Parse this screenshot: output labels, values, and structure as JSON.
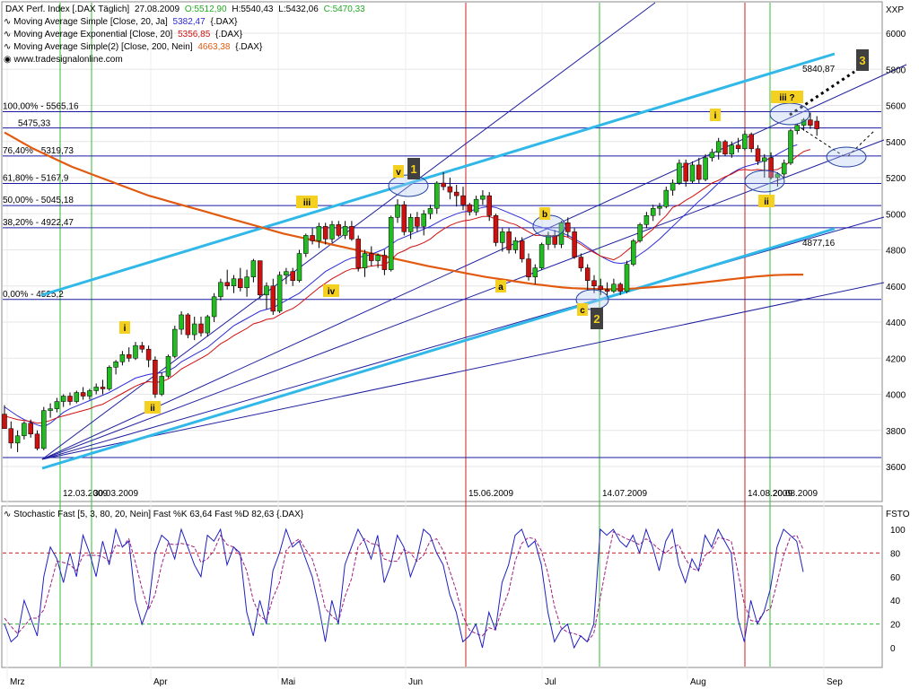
{
  "header": {
    "line1": {
      "name": "DAX Perf. Index [.DAX  Täglich]",
      "date": "27.08.2009",
      "o": "O:5512,90",
      "h": "H:5540,43",
      "l": "L:5432,06",
      "c": "C:5470,33"
    },
    "line2": {
      "name": "Moving Average Simple [Close, 20, Ja]",
      "value": "5382,47",
      "suffix": "{.DAX}",
      "color": "#2b2bd6"
    },
    "line3": {
      "name": "Moving Average Exponential [Close, 20]",
      "value": "5356,85",
      "suffix": "{.DAX}",
      "color": "#d01010"
    },
    "line4": {
      "name": "Moving Average Simple(2) [Close, 200, Nein]",
      "value": "4663,38",
      "suffix": "{.DAX}",
      "color": "#e25a10"
    },
    "source": "www.tradesignalonline.com"
  },
  "colors": {
    "up": "#22bb22",
    "down": "#cc1111",
    "sma20": "#2b2bd6",
    "ema20": "#d01010",
    "sma200": "#e25a10",
    "channel": "#30b8e8",
    "fib": "#1a1aa0",
    "vgreen": "#33bb33",
    "vred": "#cc2222",
    "label_bg": "#f4d020",
    "wave_bg": "#404040"
  },
  "price_axis": {
    "unit": "XXP",
    "ticks": [
      "6000",
      "5800",
      "5600",
      "5400",
      "5200",
      "5000",
      "4800",
      "4600",
      "4400",
      "4200",
      "4000",
      "3800",
      "3600"
    ]
  },
  "stoch_axis": {
    "unit": "FSTO",
    "ticks": [
      "100",
      "80",
      "60",
      "40",
      "20",
      "0"
    ]
  },
  "stoch_title": "Stochastic Fast [5, 3, 80, 20, Nein]  Fast %K 63,64  Fast %D 82,63 {.DAX}",
  "months": [
    "Mrz",
    "Apr",
    "Mai",
    "Jun",
    "Jul",
    "Aug",
    "Sep"
  ],
  "fib_levels": [
    {
      "label": "100,00% - 5565,16",
      "value": 5565.16
    },
    {
      "label": "76,40% - 5319,73",
      "value": 5319.73
    },
    {
      "label": "61,80% - 5167,9",
      "value": 5167.9
    },
    {
      "label": "50,00% - 5045,18",
      "value": 5045.18
    },
    {
      "label": "38,20% - 4922,47",
      "value": 4922.47
    },
    {
      "label": "0,00% - 4525,2",
      "value": 4525.2
    }
  ],
  "overlap_label": "5475,33",
  "channel_labels": {
    "upper": "5840,87",
    "lower": "4877,16"
  },
  "vertical_lines": [
    {
      "label": "12.03.2009",
      "color": "green"
    },
    {
      "label": "30.03.2009",
      "color": "green"
    },
    {
      "label": "15.06.2009",
      "color": "red"
    },
    {
      "label": "14.07.2009",
      "color": "green"
    },
    {
      "label": "14.08.2009",
      "color": "red"
    },
    {
      "label": "20.08.2009",
      "color": "green"
    }
  ],
  "wave_labels": {
    "i1": "i",
    "ii1": "ii",
    "iii1": "iii",
    "iv1": "iv",
    "v1": "v",
    "w1": "1",
    "a": "a",
    "b": "b",
    "c": "c",
    "w2": "2",
    "i2": "i",
    "ii2": "ii",
    "iii2": "iii ?",
    "w3": "3"
  },
  "chart_data": {
    "type": "candlestick",
    "title": "DAX Perf. Index [.DAX  Täglich]",
    "ylim": [
      3450,
      6100
    ],
    "stoch_ylim": [
      -15,
      110
    ],
    "candles": [
      [
        3890,
        3940,
        3810,
        3810
      ],
      [
        3810,
        3850,
        3700,
        3730
      ],
      [
        3730,
        3800,
        3680,
        3770
      ],
      [
        3770,
        3850,
        3750,
        3840
      ],
      [
        3840,
        3860,
        3760,
        3780
      ],
      [
        3780,
        3800,
        3690,
        3700
      ],
      [
        3700,
        3930,
        3690,
        3910
      ],
      [
        3910,
        3950,
        3870,
        3920
      ],
      [
        3920,
        3980,
        3900,
        3960
      ],
      [
        3960,
        4000,
        3930,
        3990
      ],
      [
        3990,
        4010,
        3940,
        3960
      ],
      [
        3960,
        4020,
        3950,
        4010
      ],
      [
        4010,
        4040,
        3970,
        3990
      ],
      [
        3990,
        4030,
        3970,
        4020
      ],
      [
        4020,
        4060,
        4000,
        4040
      ],
      [
        4040,
        4080,
        4000,
        4030
      ],
      [
        4030,
        4160,
        4020,
        4150
      ],
      [
        4150,
        4190,
        4110,
        4180
      ],
      [
        4180,
        4240,
        4160,
        4220
      ],
      [
        4220,
        4260,
        4180,
        4200
      ],
      [
        4200,
        4290,
        4190,
        4270
      ],
      [
        4270,
        4290,
        4230,
        4250
      ],
      [
        4250,
        4270,
        4150,
        4190
      ],
      [
        4190,
        4210,
        3980,
        4000
      ],
      [
        4000,
        4120,
        3990,
        4100
      ],
      [
        4100,
        4220,
        4090,
        4210
      ],
      [
        4210,
        4380,
        4200,
        4360
      ],
      [
        4360,
        4460,
        4330,
        4440
      ],
      [
        4440,
        4450,
        4310,
        4330
      ],
      [
        4330,
        4430,
        4300,
        4390
      ],
      [
        4390,
        4430,
        4320,
        4340
      ],
      [
        4340,
        4440,
        4320,
        4430
      ],
      [
        4430,
        4560,
        4400,
        4540
      ],
      [
        4540,
        4640,
        4520,
        4620
      ],
      [
        4620,
        4690,
        4580,
        4600
      ],
      [
        4600,
        4660,
        4560,
        4640
      ],
      [
        4640,
        4700,
        4570,
        4590
      ],
      [
        4590,
        4690,
        4540,
        4650
      ],
      [
        4650,
        4750,
        4620,
        4740
      ],
      [
        4740,
        4740,
        4530,
        4550
      ],
      [
        4550,
        4620,
        4470,
        4600
      ],
      [
        4600,
        4640,
        4440,
        4460
      ],
      [
        4460,
        4680,
        4450,
        4660
      ],
      [
        4660,
        4700,
        4610,
        4680
      ],
      [
        4680,
        4700,
        4600,
        4630
      ],
      [
        4630,
        4800,
        4620,
        4780
      ],
      [
        4780,
        4890,
        4760,
        4880
      ],
      [
        4880,
        4920,
        4830,
        4850
      ],
      [
        4850,
        4950,
        4810,
        4930
      ],
      [
        4930,
        4950,
        4830,
        4860
      ],
      [
        4860,
        4960,
        4840,
        4940
      ],
      [
        4940,
        4960,
        4870,
        4880
      ],
      [
        4880,
        4960,
        4860,
        4930
      ],
      [
        4930,
        4960,
        4850,
        4860
      ],
      [
        4860,
        4880,
        4680,
        4700
      ],
      [
        4700,
        4800,
        4650,
        4780
      ],
      [
        4780,
        4820,
        4710,
        4740
      ],
      [
        4740,
        4780,
        4700,
        4770
      ],
      [
        4770,
        4800,
        4660,
        4690
      ],
      [
        4690,
        4990,
        4680,
        4980
      ],
      [
        4980,
        5080,
        4950,
        5050
      ],
      [
        5050,
        5070,
        4880,
        4900
      ],
      [
        4900,
        5000,
        4860,
        4980
      ],
      [
        4980,
        5010,
        4900,
        4930
      ],
      [
        4930,
        5020,
        4880,
        5000
      ],
      [
        5000,
        5050,
        4970,
        5030
      ],
      [
        5030,
        5180,
        5000,
        5170
      ],
      [
        5170,
        5230,
        5130,
        5150
      ],
      [
        5150,
        5200,
        5080,
        5120
      ],
      [
        5120,
        5160,
        5040,
        5100
      ],
      [
        5100,
        5150,
        5020,
        5050
      ],
      [
        5050,
        5060,
        4990,
        5010
      ],
      [
        5010,
        5100,
        4990,
        5080
      ],
      [
        5080,
        5130,
        5050,
        5100
      ],
      [
        5100,
        5120,
        4960,
        4990
      ],
      [
        4990,
        5000,
        4820,
        4840
      ],
      [
        4840,
        4920,
        4790,
        4900
      ],
      [
        4900,
        4920,
        4780,
        4800
      ],
      [
        4800,
        4870,
        4780,
        4850
      ],
      [
        4850,
        4870,
        4730,
        4750
      ],
      [
        4750,
        4780,
        4630,
        4650
      ],
      [
        4650,
        4720,
        4610,
        4700
      ],
      [
        4700,
        4840,
        4690,
        4830
      ],
      [
        4830,
        4900,
        4800,
        4880
      ],
      [
        4880,
        4910,
        4810,
        4830
      ],
      [
        4830,
        4960,
        4810,
        4950
      ],
      [
        4950,
        4980,
        4870,
        4900
      ],
      [
        4900,
        4920,
        4750,
        4760
      ],
      [
        4760,
        4780,
        4680,
        4700
      ],
      [
        4700,
        4720,
        4580,
        4630
      ],
      [
        4630,
        4660,
        4560,
        4600
      ],
      [
        4600,
        4640,
        4550,
        4580
      ],
      [
        4580,
        4620,
        4540,
        4570
      ],
      [
        4570,
        4640,
        4560,
        4610
      ],
      [
        4610,
        4620,
        4550,
        4570
      ],
      [
        4570,
        4740,
        4560,
        4720
      ],
      [
        4720,
        4860,
        4710,
        4850
      ],
      [
        4850,
        4950,
        4840,
        4940
      ],
      [
        4940,
        5010,
        4920,
        4990
      ],
      [
        4990,
        5050,
        4960,
        5030
      ],
      [
        5030,
        5060,
        4990,
        5040
      ],
      [
        5040,
        5150,
        5030,
        5130
      ],
      [
        5130,
        5190,
        5100,
        5170
      ],
      [
        5170,
        5300,
        5160,
        5280
      ],
      [
        5280,
        5300,
        5150,
        5180
      ],
      [
        5180,
        5290,
        5170,
        5270
      ],
      [
        5270,
        5310,
        5170,
        5190
      ],
      [
        5190,
        5330,
        5180,
        5310
      ],
      [
        5310,
        5360,
        5290,
        5340
      ],
      [
        5340,
        5420,
        5300,
        5400
      ],
      [
        5400,
        5410,
        5320,
        5330
      ],
      [
        5330,
        5400,
        5310,
        5380
      ],
      [
        5380,
        5420,
        5340,
        5360
      ],
      [
        5360,
        5460,
        5350,
        5440
      ],
      [
        5440,
        5450,
        5340,
        5360
      ],
      [
        5360,
        5380,
        5270,
        5290
      ],
      [
        5290,
        5330,
        5200,
        5310
      ],
      [
        5310,
        5340,
        5190,
        5200
      ],
      [
        5200,
        5230,
        5150,
        5220
      ],
      [
        5220,
        5300,
        5200,
        5280
      ],
      [
        5280,
        5470,
        5270,
        5460
      ],
      [
        5460,
        5500,
        5440,
        5490
      ],
      [
        5490,
        5530,
        5460,
        5520
      ],
      [
        5520,
        5560,
        5470,
        5490
      ],
      [
        5512.9,
        5540.43,
        5432.06,
        5470.33
      ]
    ],
    "sma20": [
      3930,
      3905,
      3880,
      3860,
      3845,
      3830,
      3820,
      3840,
      3870,
      3900,
      3920,
      3935,
      3950,
      3965,
      3980,
      3995,
      4010,
      4030,
      4050,
      4070,
      4090,
      4100,
      4110,
      4115,
      4120,
      4130,
      4150,
      4180,
      4200,
      4220,
      4240,
      4260,
      4290,
      4320,
      4350,
      4380,
      4400,
      4420,
      4440,
      4460,
      4470,
      4480,
      4500,
      4520,
      4540,
      4560,
      4590,
      4620,
      4650,
      4680,
      4700,
      4720,
      4740,
      4755,
      4760,
      4765,
      4775,
      4790,
      4805,
      4830,
      4855,
      4870,
      4885,
      4900,
      4915,
      4930,
      4950,
      4970,
      4985,
      5000,
      5010,
      5015,
      5025,
      5035,
      5040,
      5035,
      5020,
      5005,
      4990,
      4975,
      4955,
      4935,
      4925,
      4915,
      4905,
      4895,
      4880,
      4860,
      4840,
      4815,
      4790,
      4765,
      4745,
      4730,
      4725,
      4730,
      4750,
      4775,
      4800,
      4830,
      4860,
      4895,
      4930,
      4965,
      5000,
      5035,
      5070,
      5100,
      5135,
      5170,
      5200,
      5225,
      5245,
      5260,
      5270,
      5280,
      5295,
      5310,
      5330,
      5350,
      5370,
      5382
    ],
    "ema20": [
      3880,
      3870,
      3860,
      3855,
      3850,
      3840,
      3845,
      3855,
      3870,
      3880,
      3890,
      3900,
      3910,
      3920,
      3935,
      3945,
      3965,
      3985,
      4005,
      4025,
      4045,
      4060,
      4070,
      4065,
      4070,
      4085,
      4110,
      4140,
      4160,
      4180,
      4200,
      4220,
      4250,
      4280,
      4300,
      4325,
      4345,
      4365,
      4390,
      4400,
      4415,
      4420,
      4440,
      4460,
      4475,
      4500,
      4530,
      4560,
      4590,
      4615,
      4640,
      4660,
      4680,
      4695,
      4695,
      4705,
      4710,
      4715,
      4715,
      4745,
      4780,
      4795,
      4815,
      4825,
      4840,
      4860,
      4890,
      4915,
      4935,
      4950,
      4960,
      4965,
      4975,
      4985,
      4985,
      4970,
      4965,
      4950,
      4940,
      4920,
      4900,
      4880,
      4880,
      4880,
      4875,
      4880,
      4870,
      4850,
      4830,
      4805,
      4785,
      4765,
      4755,
      4745,
      4765,
      4795,
      4825,
      4855,
      4885,
      4915,
      4955,
      4990,
      5035,
      5050,
      5075,
      5095,
      5120,
      5145,
      5170,
      5185,
      5205,
      5220,
      5240,
      5245,
      5240,
      5245,
      5240,
      5240,
      5245,
      5265,
      5290,
      5320,
      5345,
      5356
    ],
    "sma200": [
      5450,
      5420,
      5390,
      5360,
      5335,
      5310,
      5285,
      5260,
      5240,
      5220,
      5200,
      5180,
      5160,
      5140,
      5120,
      5100,
      5085,
      5070,
      5055,
      5040,
      5025,
      5010,
      4995,
      4980,
      4965,
      4950,
      4935,
      4920,
      4905,
      4890,
      4878,
      4866,
      4854,
      4842,
      4830,
      4818,
      4806,
      4794,
      4782,
      4770,
      4758,
      4746,
      4734,
      4722,
      4710,
      4700,
      4690,
      4680,
      4670,
      4660,
      4650,
      4642,
      4634,
      4626,
      4618,
      4610,
      4604,
      4598,
      4592,
      4588,
      4586,
      4584,
      4583,
      4582,
      4583,
      4585,
      4588,
      4592,
      4596,
      4600,
      4605,
      4610,
      4616,
      4622,
      4628,
      4634,
      4640,
      4646,
      4652,
      4656,
      4660,
      4662,
      4663,
      4663
    ],
    "stoch_k": [
      20,
      5,
      10,
      40,
      25,
      10,
      60,
      85,
      75,
      55,
      80,
      60,
      95,
      80,
      60,
      90,
      70,
      100,
      85,
      90,
      40,
      20,
      35,
      80,
      95,
      90,
      75,
      100,
      85,
      70,
      60,
      95,
      90,
      100,
      70,
      85,
      80,
      30,
      10,
      40,
      20,
      65,
      80,
      100,
      85,
      90,
      75,
      60,
      35,
      5,
      40,
      20,
      70,
      85,
      100,
      90,
      75,
      95,
      55,
      70,
      95,
      85,
      60,
      75,
      100,
      95,
      80,
      70,
      45,
      30,
      5,
      10,
      20,
      0,
      30,
      15,
      55,
      70,
      95,
      100,
      85,
      90,
      70,
      30,
      5,
      15,
      20,
      0,
      10,
      5,
      20,
      100,
      95,
      100,
      90,
      85,
      95,
      80,
      100,
      85,
      65,
      90,
      100,
      70,
      55,
      75,
      65,
      95,
      85,
      100,
      90,
      80,
      25,
      5,
      40,
      20,
      30,
      50,
      85,
      100,
      95,
      90,
      64
    ],
    "stoch_d": [
      25,
      18,
      12,
      18,
      25,
      25,
      32,
      52,
      73,
      72,
      70,
      65,
      78,
      78,
      78,
      77,
      73,
      87,
      85,
      92,
      72,
      50,
      32,
      45,
      70,
      88,
      87,
      88,
      87,
      85,
      72,
      75,
      82,
      95,
      87,
      85,
      78,
      65,
      40,
      27,
      23,
      42,
      55,
      82,
      88,
      92,
      83,
      75,
      57,
      33,
      27,
      22,
      43,
      58,
      85,
      92,
      88,
      87,
      75,
      73,
      73,
      83,
      80,
      73,
      78,
      90,
      92,
      82,
      65,
      48,
      27,
      15,
      12,
      10,
      17,
      15,
      33,
      47,
      73,
      88,
      93,
      92,
      82,
      63,
      35,
      17,
      13,
      12,
      10,
      5,
      12,
      42,
      72,
      98,
      95,
      92,
      90,
      87,
      92,
      88,
      83,
      80,
      85,
      87,
      75,
      67,
      65,
      78,
      82,
      93,
      92,
      90,
      65,
      37,
      23,
      22,
      30,
      33,
      55,
      78,
      93,
      95,
      83
    ]
  }
}
